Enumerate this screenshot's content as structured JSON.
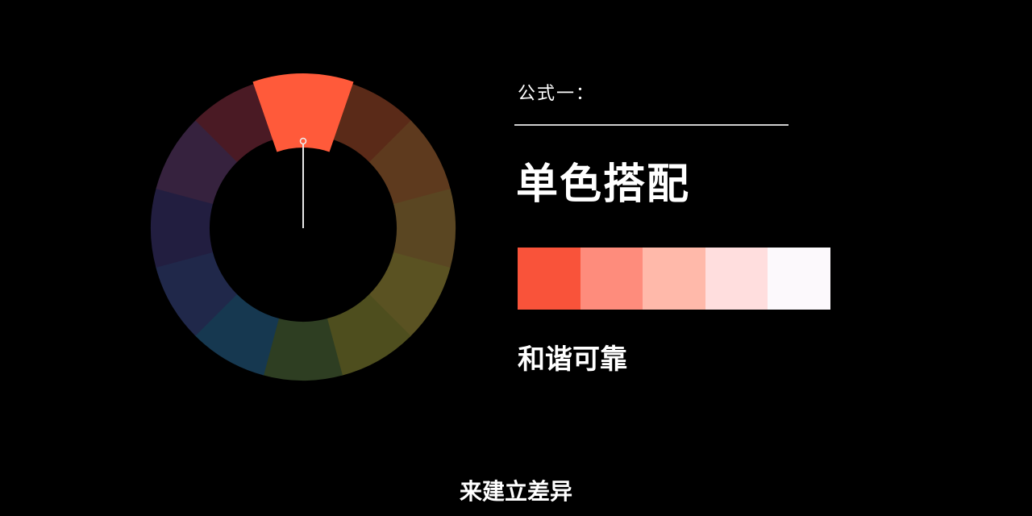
{
  "slide": {
    "formula_label": "公式一：",
    "title": "单色搭配",
    "description": "和谐可靠",
    "caption": "来建立差异"
  },
  "color_wheel": {
    "selected_index": 0,
    "segments": [
      "#FF5A3A",
      "#5A2A18",
      "#5E3A1E",
      "#5A4622",
      "#5A5222",
      "#4E4E1E",
      "#2E3E22",
      "#163850",
      "#20284A",
      "#221E40",
      "#36223E",
      "#4A1A24"
    ]
  },
  "palette": [
    "#F9533A",
    "#FE8C7C",
    "#FFB9AA",
    "#FFDEDE",
    "#FCF9FC"
  ]
}
